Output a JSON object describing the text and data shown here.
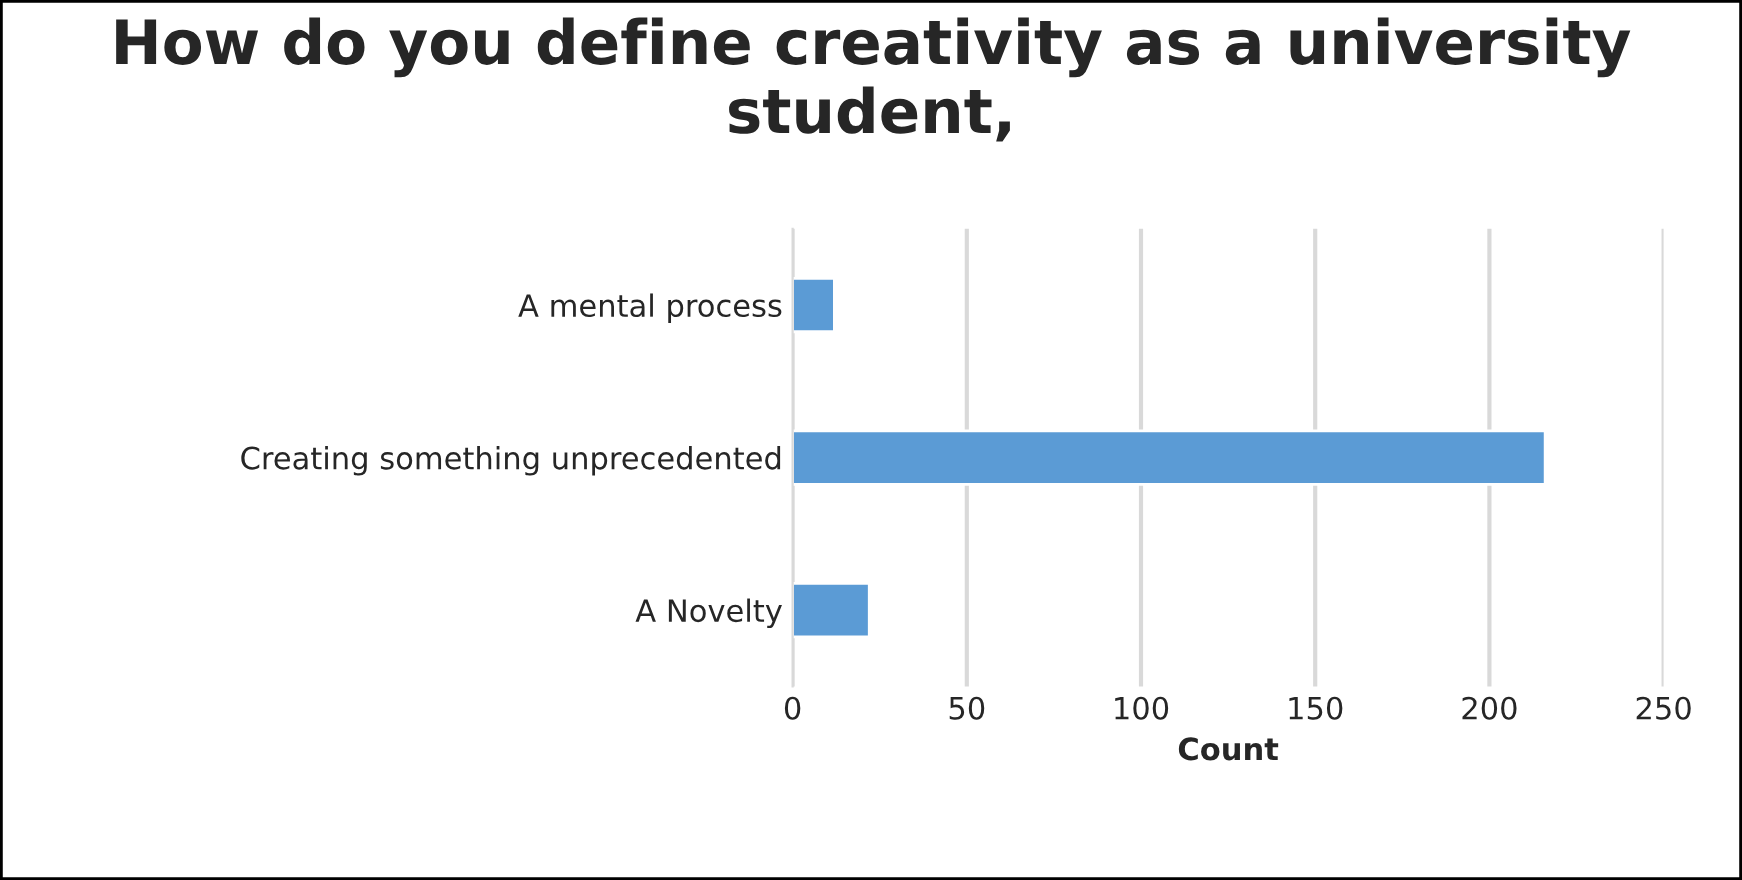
{
  "chart_data": {
    "type": "bar",
    "orientation": "horizontal",
    "title": "How do you define creativity as a university student,",
    "categories": [
      "A mental process",
      "Creating something unprecedented",
      "A Novelty"
    ],
    "values": [
      12,
      216,
      22
    ],
    "color": "#5b9bd5",
    "xlabel": "Count",
    "xlim": [
      0,
      250
    ],
    "xticks": [
      0,
      50,
      100,
      150,
      200,
      250
    ],
    "grid": "x"
  }
}
